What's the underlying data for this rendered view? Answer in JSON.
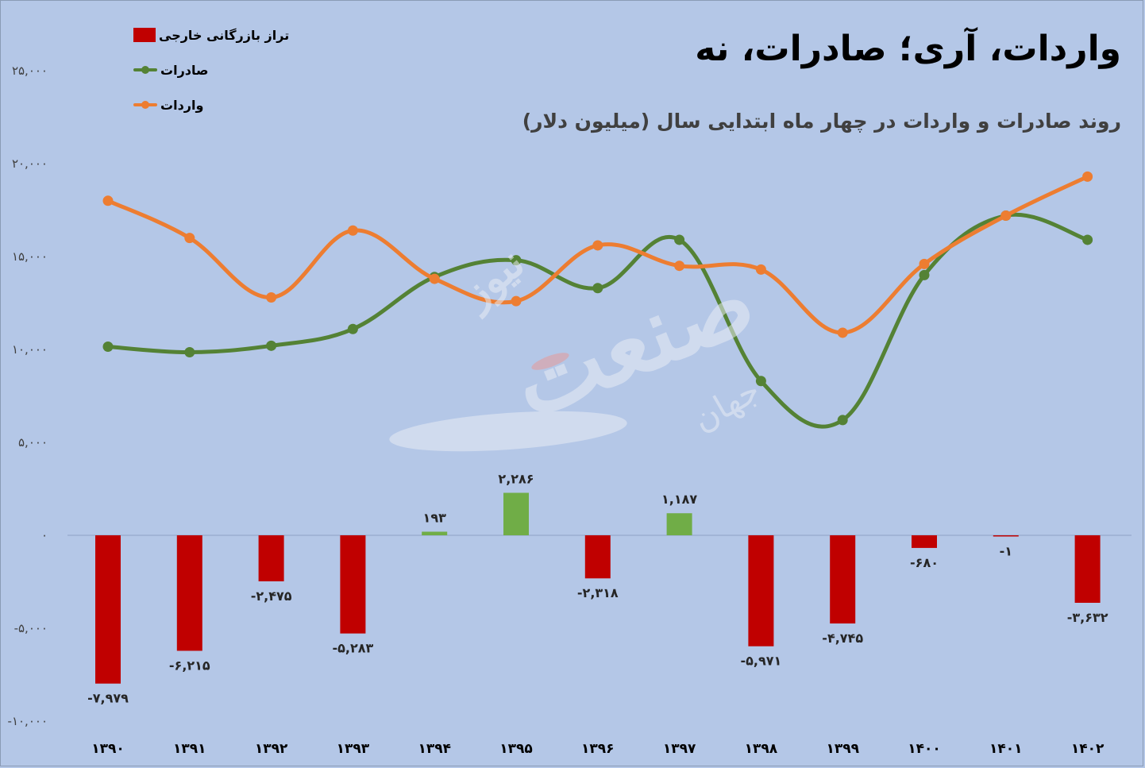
{
  "title": "واردات، آری؛ صادرات، نه",
  "subtitle": "روند صادرات و واردات در چهار ماه ابتدایی سال (میلیون دلار)",
  "legend": {
    "balance": "تراز بازرگانی خارجی",
    "exports": "صادرات",
    "imports": "واردات"
  },
  "watermark": {
    "main": "صنعت",
    "small": "نیوز",
    "low": "جهان"
  },
  "colors": {
    "background": "#b4c7e7",
    "balance_negative": "#c00000",
    "balance_positive": "#70ad47",
    "exports": "#548235",
    "imports": "#ed7d31"
  },
  "chart_data": {
    "type": "bar+line",
    "categories": [
      "۱۳۹۰",
      "۱۳۹۱",
      "۱۳۹۲",
      "۱۳۹۳",
      "۱۳۹۴",
      "۱۳۹۵",
      "۱۳۹۶",
      "۱۳۹۷",
      "۱۳۹۸",
      "۱۳۹۹",
      "۱۴۰۰",
      "۱۴۰۱",
      "۱۴۰۲"
    ],
    "series": [
      {
        "name": "تراز بازرگانی خارجی",
        "kind": "bar",
        "values": [
          -7979,
          -6215,
          -2475,
          -5283,
          193,
          2286,
          -2318,
          1187,
          -5971,
          -4745,
          -680,
          -1,
          -3632
        ],
        "labels": [
          "-۷,۹۷۹",
          "-۶,۲۱۵",
          "-۲,۴۷۵",
          "-۵,۲۸۳",
          "۱۹۳",
          "۲,۲۸۶",
          "-۲,۳۱۸",
          "۱,۱۸۷",
          "-۵,۹۷۱",
          "-۴,۷۴۵",
          "-۶۸۰",
          "-۱",
          "-۳,۶۳۲"
        ]
      },
      {
        "name": "صادرات",
        "kind": "line",
        "values": [
          10150,
          9850,
          10200,
          11100,
          13900,
          14800,
          13300,
          15900,
          8300,
          6200,
          14000,
          17200,
          15900
        ]
      },
      {
        "name": "واردات",
        "kind": "line",
        "values": [
          18000,
          16000,
          12800,
          16400,
          13800,
          12600,
          15600,
          14500,
          14300,
          10900,
          14600,
          17200,
          19300
        ]
      }
    ],
    "y_ticks": [
      -10000,
      -5000,
      0,
      5000,
      10000,
      15000,
      20000,
      25000
    ],
    "y_tick_labels": [
      "-۱۰,۰۰۰",
      "-۵,۰۰۰",
      "۰",
      "۵,۰۰۰",
      "۱۰,۰۰۰",
      "۱۵,۰۰۰",
      "۲۰,۰۰۰",
      "۲۵,۰۰۰"
    ],
    "ylim": [
      -10000,
      25000
    ],
    "grid": false,
    "legend_position": "top-left"
  }
}
